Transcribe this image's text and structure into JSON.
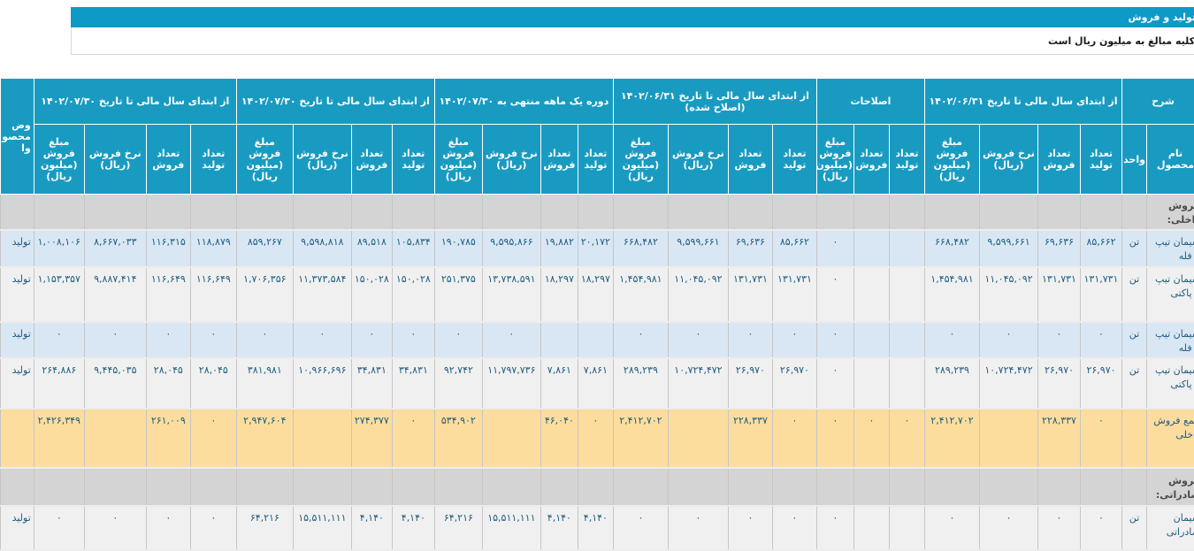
{
  "header": {
    "title": "تولید و فروش",
    "note": "کلیه مبالغ به میلیون ریال است"
  },
  "colors": {
    "accent_teal": "#199bc1",
    "title_bar_teal": "#0d9ac6",
    "row_alt_blue": "#d9e7f4",
    "row_plain_gray": "#f0f0f0",
    "total_row_yellow": "#fcdd9e",
    "section_band_gray": "#d4d4d4",
    "cell_text_blue": "#1d5c80"
  },
  "table": {
    "groups": [
      {
        "label": "شرح",
        "subs": [
          "نام محصول",
          "واحد"
        ]
      },
      {
        "label": "از ابتدای سال مالی تا تاریخ ۱۴۰۲/۰۶/۳۱",
        "subs": [
          "تعداد تولید",
          "تعداد فروش",
          "نرخ فروش (ریال)",
          "مبلغ فروش (میلیون ریال)"
        ]
      },
      {
        "label": "اصلاحات",
        "subs": [
          "تعداد تولید",
          "تعداد فروش",
          "مبلغ فروش (میلیون ریال)"
        ]
      },
      {
        "label": "از ابتدای سال مالی تا تاریخ ۱۴۰۲/۰۶/۳۱ (اصلاح شده)",
        "subs": [
          "تعداد تولید",
          "تعداد فروش",
          "نرخ فروش (ریال)",
          "مبلغ فروش (میلیون ریال)"
        ]
      },
      {
        "label": "دوره یک ماهه منتهی به ۱۴۰۲/۰۷/۳۰",
        "subs": [
          "تعداد تولید",
          "تعداد فروش",
          "نرخ فروش (ریال)",
          "مبلغ فروش (میلیون ریال)"
        ]
      },
      {
        "label": "از ابتدای سال مالی تا تاریخ ۱۴۰۲/۰۷/۳۰",
        "subs": [
          "تعداد تولید",
          "تعداد فروش",
          "نرخ فروش (ریال)",
          "مبلغ فروش (میلیون ریال)"
        ]
      },
      {
        "label": "از ابتدای سال مالی تا تاریخ ۱۴۰۲/۰۷/۳۰",
        "subs": [
          "تعداد تولید",
          "تعداد فروش",
          "نرخ فروش (ریال)",
          "مبلغ فروش (میلیون ریال)"
        ]
      },
      {
        "label": "وض محصو وا",
        "subs": []
      }
    ],
    "body": [
      {
        "type": "section",
        "label": "فروش داخلی:"
      },
      {
        "type": "data",
        "style": "alt",
        "cells": [
          "سیمان تیپ ۵ فله",
          "تن",
          "۸۵,۶۶۲",
          "۶۹,۶۳۶",
          "۹,۵۹۹,۶۶۱",
          "۶۶۸,۴۸۲",
          "",
          "",
          "۰",
          "۸۵,۶۶۲",
          "۶۹,۶۳۶",
          "۹,۵۹۹,۶۶۱",
          "۶۶۸,۴۸۲",
          "۲۰,۱۷۲",
          "۱۹,۸۸۲",
          "۹,۵۹۵,۸۶۶",
          "۱۹۰,۷۸۵",
          "۱۰۵,۸۳۴",
          "۸۹,۵۱۸",
          "۹,۵۹۸,۸۱۸",
          "۸۵۹,۲۶۷",
          "۱۱۸,۸۷۹",
          "۱۱۶,۳۱۵",
          "۸,۶۶۷,۰۳۳",
          "۱,۰۰۸,۱۰۶",
          "تولید"
        ]
      },
      {
        "type": "data",
        "style": "plain",
        "cells": [
          "سیمان تیپ ۵ پاکتی",
          "تن",
          "۱۳۱,۷۳۱",
          "۱۳۱,۷۳۱",
          "۱۱,۰۴۵,۰۹۲",
          "۱,۴۵۴,۹۸۱",
          "",
          "",
          "۰",
          "۱۳۱,۷۳۱",
          "۱۳۱,۷۳۱",
          "۱۱,۰۴۵,۰۹۲",
          "۱,۴۵۴,۹۸۱",
          "۱۸,۲۹۷",
          "۱۸,۲۹۷",
          "۱۳,۷۳۸,۵۹۱",
          "۲۵۱,۳۷۵",
          "۱۵۰,۰۲۸",
          "۱۵۰,۰۲۸",
          "۱۱,۳۷۳,۵۸۴",
          "۱,۷۰۶,۳۵۶",
          "۱۱۶,۶۴۹",
          "۱۱۶,۶۴۹",
          "۹,۸۸۷,۴۱۴",
          "۱,۱۵۳,۳۵۷",
          "تولید"
        ]
      },
      {
        "type": "data",
        "style": "alt",
        "cells": [
          "سیمان تیپ ۲ فله",
          "تن",
          "۰",
          "۰",
          "۰",
          "۰",
          "",
          "",
          "۰",
          "۰",
          "۰",
          "۰",
          "۰",
          "",
          "",
          "۰",
          "۰",
          "۰",
          "۰",
          "۰",
          "۰",
          "۰",
          "۰",
          "۰",
          "۰",
          "تولید"
        ]
      },
      {
        "type": "data",
        "style": "plain",
        "cells": [
          "سیمان تیپ ۲ پاکتی",
          "تن",
          "۲۶,۹۷۰",
          "۲۶,۹۷۰",
          "۱۰,۷۲۴,۴۷۲",
          "۲۸۹,۲۳۹",
          "",
          "",
          "۰",
          "۲۶,۹۷۰",
          "۲۶,۹۷۰",
          "۱۰,۷۲۴,۴۷۲",
          "۲۸۹,۲۳۹",
          "۷,۸۶۱",
          "۷,۸۶۱",
          "۱۱,۷۹۷,۷۳۶",
          "۹۲,۷۴۲",
          "۳۴,۸۳۱",
          "۳۴,۸۳۱",
          "۱۰,۹۶۶,۶۹۶",
          "۳۸۱,۹۸۱",
          "۲۸,۰۴۵",
          "۲۸,۰۴۵",
          "۹,۴۴۵,۰۳۵",
          "۲۶۴,۸۸۶",
          "تولید"
        ]
      },
      {
        "type": "data",
        "style": "total",
        "cells": [
          "جمع فروش داخلی",
          "",
          "۰",
          "۲۲۸,۳۳۷",
          "",
          "۲,۴۱۲,۷۰۲",
          "۰",
          "۰",
          "۰",
          "۰",
          "۲۲۸,۳۳۷",
          "",
          "۲,۴۱۲,۷۰۲",
          "۰",
          "۴۶,۰۴۰",
          "",
          "۵۳۴,۹۰۲",
          "۰",
          "۲۷۴,۳۷۷",
          "",
          "۲,۹۴۷,۶۰۴",
          "۰",
          "۲۶۱,۰۰۹",
          "",
          "۲,۴۲۶,۳۴۹",
          ""
        ]
      },
      {
        "type": "section",
        "label": "فروش صادراتی:"
      },
      {
        "type": "data",
        "style": "plain",
        "cells": [
          "سیمان صادراتی",
          "تن",
          "۰",
          "۰",
          "۰",
          "۰",
          "",
          "",
          "۰",
          "۰",
          "۰",
          "۰",
          "۰",
          "۴,۱۴۰",
          "۴,۱۴۰",
          "۱۵,۵۱۱,۱۱۱",
          "۶۴,۲۱۶",
          "۴,۱۴۰",
          "۴,۱۴۰",
          "۱۵,۵۱۱,۱۱۱",
          "۶۴,۲۱۶",
          "۰",
          "۰",
          "۰",
          "۰",
          "تولید"
        ]
      }
    ]
  }
}
